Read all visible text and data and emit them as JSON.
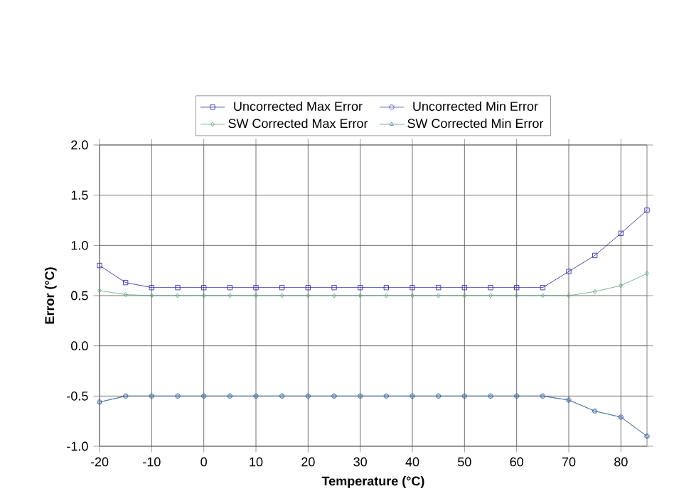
{
  "chart_data": {
    "type": "line",
    "xlabel": "Temperature (°C)",
    "ylabel": "Error (°C)",
    "x": [
      -20,
      -15,
      -10,
      -5,
      0,
      5,
      10,
      15,
      20,
      25,
      30,
      35,
      40,
      45,
      50,
      55,
      60,
      65,
      70,
      75,
      80,
      85
    ],
    "series": [
      {
        "name": "Uncorrected Max Error",
        "color": "#1a1aa8",
        "marker": "square",
        "values": [
          0.8,
          0.63,
          0.58,
          0.58,
          0.58,
          0.58,
          0.58,
          0.58,
          0.58,
          0.58,
          0.58,
          0.58,
          0.58,
          0.58,
          0.58,
          0.58,
          0.58,
          0.58,
          0.74,
          0.9,
          1.12,
          1.35
        ]
      },
      {
        "name": "Uncorrected Min Error",
        "color": "#3a3ab0",
        "marker": "circle",
        "values": [
          -0.56,
          -0.5,
          -0.5,
          -0.5,
          -0.5,
          -0.5,
          -0.5,
          -0.5,
          -0.5,
          -0.5,
          -0.5,
          -0.5,
          -0.5,
          -0.5,
          -0.5,
          -0.5,
          -0.5,
          -0.5,
          -0.54,
          -0.65,
          -0.71,
          -0.9
        ]
      },
      {
        "name": "SW Corrected Max Error",
        "color": "#5fa37c",
        "marker": "diamond",
        "values": [
          0.55,
          0.51,
          0.5,
          0.5,
          0.5,
          0.5,
          0.5,
          0.5,
          0.5,
          0.5,
          0.5,
          0.5,
          0.5,
          0.5,
          0.5,
          0.5,
          0.5,
          0.5,
          0.5,
          0.54,
          0.6,
          0.72
        ]
      },
      {
        "name": "SW Corrected Min Error",
        "color": "#4a8c96",
        "marker": "triangle",
        "values": [
          -0.56,
          -0.5,
          -0.5,
          -0.5,
          -0.5,
          -0.5,
          -0.5,
          -0.5,
          -0.5,
          -0.5,
          -0.5,
          -0.5,
          -0.5,
          -0.5,
          -0.5,
          -0.5,
          -0.5,
          -0.5,
          -0.54,
          -0.65,
          -0.71,
          -0.9
        ]
      }
    ],
    "xlim": [
      -20,
      85
    ],
    "xticks": [
      -20,
      -10,
      0,
      10,
      20,
      30,
      40,
      50,
      60,
      70,
      80
    ],
    "ylim": [
      -1.0,
      2.0
    ],
    "yticks": [
      {
        "value": -1.0,
        "label": "-1.0"
      },
      {
        "value": -0.5,
        "label": "-0.5"
      },
      {
        "value": 0.0,
        "label": "0.0"
      },
      {
        "value": 0.5,
        "label": "0.5"
      },
      {
        "value": 1.0,
        "label": "1.0"
      },
      {
        "value": 1.5,
        "label": "1.5"
      },
      {
        "value": 2.0,
        "label": "2.0"
      }
    ],
    "grid": true,
    "legend": "top",
    "line_style": "solid"
  }
}
